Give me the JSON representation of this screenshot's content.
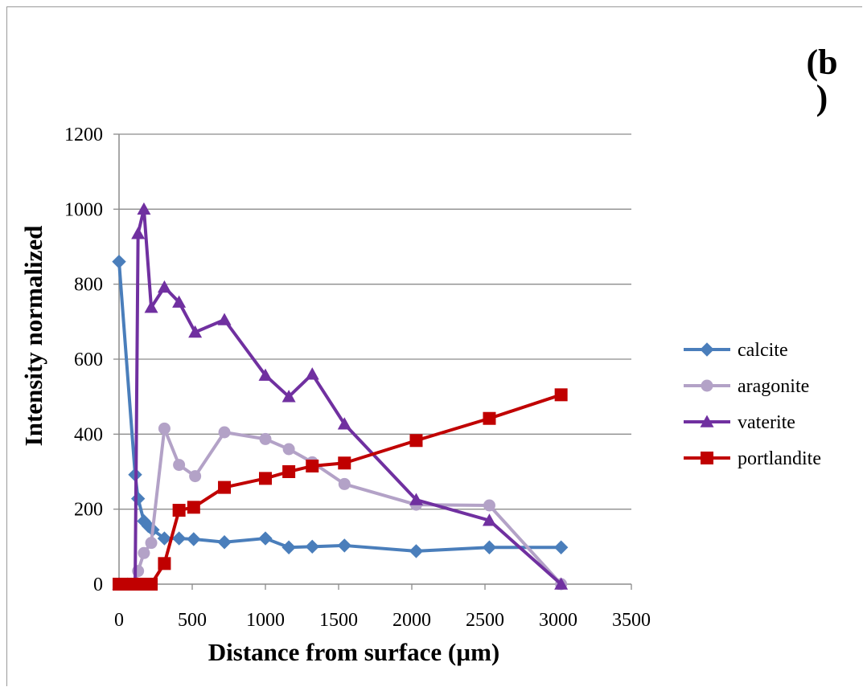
{
  "panel_label": {
    "line1": "(b",
    "line2": ")"
  },
  "chart_data": {
    "type": "line",
    "xlabel": "Distance from surface (µm)",
    "ylabel": "Intensity normalized",
    "xlim": [
      0,
      3500
    ],
    "ylim": [
      0,
      1200
    ],
    "xticks": [
      0,
      500,
      1000,
      1500,
      2000,
      2500,
      3000,
      3500
    ],
    "yticks": [
      0,
      200,
      400,
      600,
      800,
      1000,
      1200
    ],
    "grid": "horizontal",
    "legend_position": "right",
    "series": [
      {
        "name": "calcite",
        "color": "#4a7ebb",
        "marker": "diamond",
        "x": [
          0,
          110,
          130,
          170,
          200,
          230,
          310,
          410,
          510,
          720,
          1000,
          1160,
          1320,
          1540,
          2030,
          2530,
          3020
        ],
        "y": [
          860,
          292,
          228,
          168,
          155,
          145,
          122,
          122,
          120,
          112,
          122,
          98,
          100,
          103,
          88,
          98,
          98
        ]
      },
      {
        "name": "aragonite",
        "color": "#b3a2c7",
        "marker": "circle",
        "x": [
          0,
          60,
          110,
          130,
          170,
          220,
          310,
          410,
          520,
          720,
          1000,
          1160,
          1320,
          1540,
          2030,
          2530,
          3020
        ],
        "y": [
          0,
          0,
          0,
          35,
          83,
          110,
          415,
          318,
          288,
          405,
          387,
          360,
          325,
          267,
          212,
          210,
          0
        ]
      },
      {
        "name": "vaterite",
        "color": "#7030a0",
        "marker": "triangle",
        "x": [
          0,
          60,
          110,
          130,
          170,
          220,
          310,
          410,
          520,
          720,
          1000,
          1160,
          1320,
          1540,
          2030,
          2530,
          3020
        ],
        "y": [
          0,
          0,
          0,
          935,
          1000,
          738,
          792,
          752,
          672,
          705,
          557,
          500,
          560,
          427,
          225,
          170,
          0
        ]
      },
      {
        "name": "portlandite",
        "color": "#c00000",
        "marker": "square",
        "x": [
          0,
          60,
          110,
          130,
          170,
          220,
          310,
          410,
          510,
          720,
          1000,
          1160,
          1320,
          1540,
          2030,
          2530,
          3020
        ],
        "y": [
          0,
          0,
          0,
          0,
          0,
          0,
          55,
          197,
          205,
          258,
          282,
          300,
          315,
          323,
          383,
          442,
          505
        ]
      }
    ]
  }
}
